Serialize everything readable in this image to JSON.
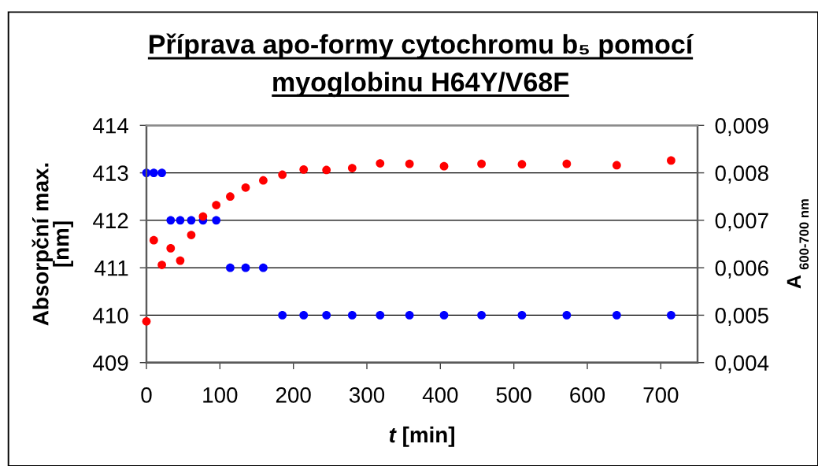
{
  "chart_data": {
    "type": "scatter",
    "title": "Příprava apo-formy cytochromu b₅ pomocí\nmyoglobinu H64Y/V68F",
    "xlabel": "t [min]",
    "ylabel": "Absorpční max.\n[nm]",
    "y2label": "A $_{600-700 nm}$",
    "x": [
      0,
      10,
      21,
      33,
      46,
      61,
      77,
      95,
      114,
      135,
      159,
      185,
      214,
      245,
      280,
      318,
      358,
      405,
      456,
      511,
      572,
      640,
      714
    ],
    "series": [
      {
        "color": "#0000ff",
        "values": [
          413,
          413,
          413,
          412,
          412,
          412,
          412,
          412,
          411,
          411,
          411,
          410,
          410,
          410,
          410,
          410,
          410,
          410,
          410,
          410,
          410,
          410,
          410
        ]
      },
      {
        "color": "#ff0000",
        "axis": "y2",
        "values": [
          0.00487,
          0.00658,
          0.00606,
          0.00641,
          0.00615,
          0.00669,
          0.00708,
          0.00732,
          0.0075,
          0.00769,
          0.00784,
          0.00796,
          0.00807,
          0.00806,
          0.0081,
          0.0082,
          0.00819,
          0.00814,
          0.00819,
          0.00818,
          0.00819,
          0.00816,
          0.00826
        ]
      }
    ],
    "xlim": [
      0,
      750
    ],
    "xticks": [
      0,
      100,
      200,
      300,
      400,
      500,
      600,
      700
    ],
    "ylim": [
      409,
      414
    ],
    "yticks": [
      409,
      410,
      411,
      412,
      413,
      414
    ],
    "y2lim": [
      0.004,
      0.009
    ],
    "y2ticks": [
      {
        "value": 0.004,
        "label": "0,004"
      },
      {
        "value": 0.005,
        "label": "0,005"
      },
      {
        "value": 0.006,
        "label": "0,006"
      },
      {
        "value": 0.007,
        "label": "0,007"
      },
      {
        "value": 0.008,
        "label": "0,008"
      },
      {
        "value": 0.009,
        "label": "0,009"
      }
    ],
    "grid": "y",
    "marker": "circle"
  }
}
